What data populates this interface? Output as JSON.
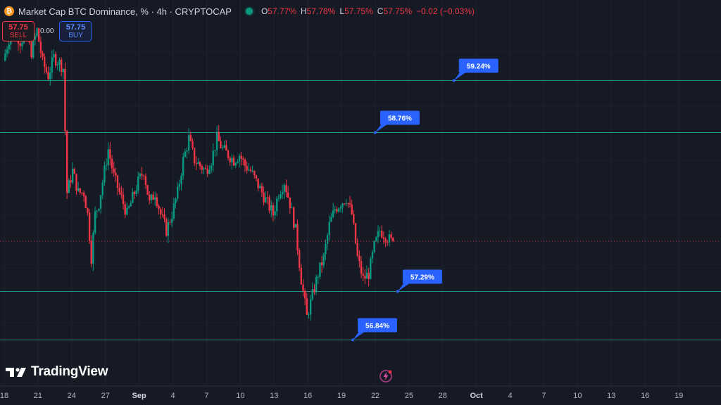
{
  "header": {
    "title": "Market Cap BTC Dominance, % · 4h · CRYPTOCAP",
    "ohlc": [
      {
        "label": "O",
        "value": "57.77%"
      },
      {
        "label": "H",
        "value": "57.78%"
      },
      {
        "label": "L",
        "value": "57.75%"
      },
      {
        "label": "C",
        "value": "57.75%"
      },
      {
        "label": "",
        "value": "−0.02 (−0.03%)"
      }
    ]
  },
  "trade": {
    "sell_price": "57.75",
    "sell_label": "SELL",
    "spread": "0.00",
    "buy_price": "57.75",
    "buy_label": "BUY"
  },
  "logo": {
    "text": "TradingView"
  },
  "colors": {
    "up": "#089981",
    "down": "#f23645",
    "level": "#26a69a",
    "label_bg": "#2962ff",
    "bg": "#161a25"
  },
  "chart_data": {
    "type": "candlestick",
    "ylim": [
      56.6,
      59.98
    ],
    "xlim": [
      "2024-08-18",
      "2024-10-20"
    ],
    "x_tick_labels": [
      "18",
      "21",
      "24",
      "27",
      "Sep",
      "4",
      "7",
      "10",
      "13",
      "16",
      "19",
      "22",
      "25",
      "28",
      "Oct",
      "4",
      "7",
      "10",
      "13",
      "16",
      "19"
    ],
    "current_price": 57.75,
    "start_date": "2024-08-18",
    "candle_hours": 4,
    "levels": [
      {
        "value": 59.24,
        "label": "59.24%",
        "date": "2024-09-27"
      },
      {
        "value": 58.76,
        "label": "58.76%",
        "date": "2024-09-20"
      },
      {
        "value": 57.29,
        "label": "57.29%",
        "date": "2024-09-22"
      },
      {
        "value": 56.84,
        "label": "56.84%",
        "date": "2024-09-18"
      }
    ],
    "close_path": [
      [
        "2024-08-18 00:00",
        59.42
      ],
      [
        "2024-08-18 12:00",
        59.62
      ],
      [
        "2024-08-19 00:00",
        59.7
      ],
      [
        "2024-08-19 12:00",
        59.6
      ],
      [
        "2024-08-20 00:00",
        59.66
      ],
      [
        "2024-08-20 12:00",
        59.5
      ],
      [
        "2024-08-21 00:00",
        59.7
      ],
      [
        "2024-08-21 12:00",
        59.4
      ],
      [
        "2024-08-22 00:00",
        59.28
      ],
      [
        "2024-08-22 12:00",
        59.45
      ],
      [
        "2024-08-23 00:00",
        59.4
      ],
      [
        "2024-08-23 08:00",
        59.35
      ],
      [
        "2024-08-23 16:00",
        58.2
      ],
      [
        "2024-08-24 04:00",
        58.4
      ],
      [
        "2024-08-24 16:00",
        58.2
      ],
      [
        "2024-08-25 04:00",
        58.2
      ],
      [
        "2024-08-25 12:00",
        58.0
      ],
      [
        "2024-08-25 20:00",
        57.6
      ],
      [
        "2024-08-26 04:00",
        58.0
      ],
      [
        "2024-08-26 12:00",
        58.1
      ],
      [
        "2024-08-27 00:00",
        58.4
      ],
      [
        "2024-08-27 08:00",
        58.6
      ],
      [
        "2024-08-27 20:00",
        58.35
      ],
      [
        "2024-08-28 08:00",
        58.2
      ],
      [
        "2024-08-29 00:00",
        58.0
      ],
      [
        "2024-08-29 12:00",
        58.15
      ],
      [
        "2024-08-30 00:00",
        58.3
      ],
      [
        "2024-08-30 12:00",
        58.4
      ],
      [
        "2024-08-31 00:00",
        58.1
      ],
      [
        "2024-08-31 12:00",
        58.2
      ],
      [
        "2024-09-01 00:00",
        58.0
      ],
      [
        "2024-09-01 12:00",
        57.85
      ],
      [
        "2024-09-02 00:00",
        58.0
      ],
      [
        "2024-09-02 12:00",
        58.2
      ],
      [
        "2024-09-03 00:00",
        58.5
      ],
      [
        "2024-09-03 12:00",
        58.7
      ],
      [
        "2024-09-04 00:00",
        58.5
      ],
      [
        "2024-09-04 12:00",
        58.45
      ],
      [
        "2024-09-05 00:00",
        58.4
      ],
      [
        "2024-09-05 12:00",
        58.5
      ],
      [
        "2024-09-06 00:00",
        58.7
      ],
      [
        "2024-09-06 12:00",
        58.6
      ],
      [
        "2024-09-07 00:00",
        58.55
      ],
      [
        "2024-09-07 12:00",
        58.5
      ],
      [
        "2024-09-08 00:00",
        58.55
      ],
      [
        "2024-09-08 12:00",
        58.45
      ],
      [
        "2024-09-09 00:00",
        58.4
      ],
      [
        "2024-09-09 12:00",
        58.3
      ],
      [
        "2024-09-10 00:00",
        58.2
      ],
      [
        "2024-09-10 12:00",
        58.1
      ],
      [
        "2024-09-11 00:00",
        58.0
      ],
      [
        "2024-09-11 12:00",
        58.2
      ],
      [
        "2024-09-12 00:00",
        58.3
      ],
      [
        "2024-09-12 12:00",
        58.1
      ],
      [
        "2024-09-13 00:00",
        57.85
      ],
      [
        "2024-09-13 12:00",
        57.4
      ],
      [
        "2024-09-14 00:00",
        57.05
      ],
      [
        "2024-09-14 12:00",
        57.25
      ],
      [
        "2024-09-15 00:00",
        57.45
      ],
      [
        "2024-09-15 12:00",
        57.6
      ],
      [
        "2024-09-16 00:00",
        57.9
      ],
      [
        "2024-09-16 12:00",
        58.05
      ],
      [
        "2024-09-17 00:00",
        58.1
      ],
      [
        "2024-09-17 12:00",
        58.15
      ],
      [
        "2024-09-18 00:00",
        58.0
      ],
      [
        "2024-09-18 12:00",
        57.6
      ],
      [
        "2024-09-19 00:00",
        57.4
      ],
      [
        "2024-09-19 12:00",
        57.45
      ],
      [
        "2024-09-20 00:00",
        57.7
      ],
      [
        "2024-09-20 12:00",
        57.85
      ],
      [
        "2024-09-21 00:00",
        57.8
      ],
      [
        "2024-09-21 12:00",
        57.75
      ]
    ]
  }
}
